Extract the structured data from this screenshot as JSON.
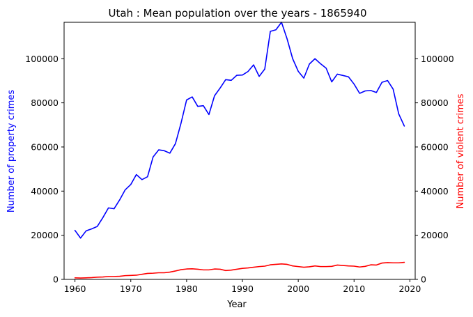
{
  "chart_data": {
    "type": "line",
    "title": "Utah : Mean population over the years - 1865940",
    "xlabel": "Year",
    "ylabel_left": "Number of property crimes",
    "ylabel_right": "Number of violent crimes",
    "xlim": [
      1958.05,
      2020.95
    ],
    "ylim_left": [
      0,
      116500
    ],
    "ylim_right": [
      0,
      116500
    ],
    "x_ticks": [
      1960,
      1970,
      1980,
      1990,
      2000,
      2010,
      2020
    ],
    "y_ticks": [
      0,
      20000,
      40000,
      60000,
      80000,
      100000
    ],
    "grid": false,
    "legend": "none",
    "x": [
      1960,
      1961,
      1962,
      1963,
      1964,
      1965,
      1966,
      1967,
      1968,
      1969,
      1970,
      1971,
      1972,
      1973,
      1974,
      1975,
      1976,
      1977,
      1978,
      1979,
      1980,
      1981,
      1982,
      1983,
      1984,
      1985,
      1986,
      1987,
      1988,
      1989,
      1990,
      1991,
      1992,
      1993,
      1994,
      1995,
      1996,
      1997,
      1998,
      1999,
      2000,
      2001,
      2002,
      2003,
      2004,
      2005,
      2006,
      2007,
      2008,
      2009,
      2010,
      2011,
      2012,
      2013,
      2014,
      2015,
      2016,
      2017,
      2018,
      2019
    ],
    "series": [
      {
        "name": "Number of property crimes",
        "axis": "left",
        "color": "#0000ff",
        "values": [
          22200,
          18700,
          22000,
          22900,
          24000,
          28000,
          32400,
          32000,
          36000,
          40600,
          43000,
          47500,
          45200,
          46500,
          55500,
          58700,
          58300,
          57200,
          61500,
          70800,
          81300,
          82700,
          78400,
          78700,
          74700,
          83200,
          86700,
          90500,
          90200,
          92500,
          92600,
          94200,
          97200,
          92000,
          95300,
          112400,
          113100,
          116500,
          109000,
          100000,
          94300,
          91200,
          97600,
          100000,
          97700,
          95700,
          89500,
          93000,
          92400,
          91800,
          88500,
          84300,
          85400,
          85600,
          84700,
          89300,
          90100,
          86200,
          75000,
          69500
        ]
      },
      {
        "name": "Number of violent crimes",
        "axis": "right",
        "color": "#ff0000",
        "values": [
          700,
          600,
          700,
          800,
          1000,
          1100,
          1300,
          1300,
          1400,
          1700,
          1800,
          1900,
          2300,
          2700,
          2800,
          3000,
          3000,
          3300,
          3800,
          4400,
          4700,
          4800,
          4600,
          4300,
          4300,
          4700,
          4600,
          4000,
          4200,
          4600,
          5000,
          5200,
          5500,
          5800,
          6000,
          6600,
          6800,
          7000,
          6800,
          6100,
          5800,
          5500,
          5700,
          6100,
          5800,
          5800,
          5900,
          6500,
          6300,
          6100,
          6000,
          5600,
          5900,
          6600,
          6500,
          7400,
          7600,
          7500,
          7500,
          7700
        ]
      }
    ]
  }
}
